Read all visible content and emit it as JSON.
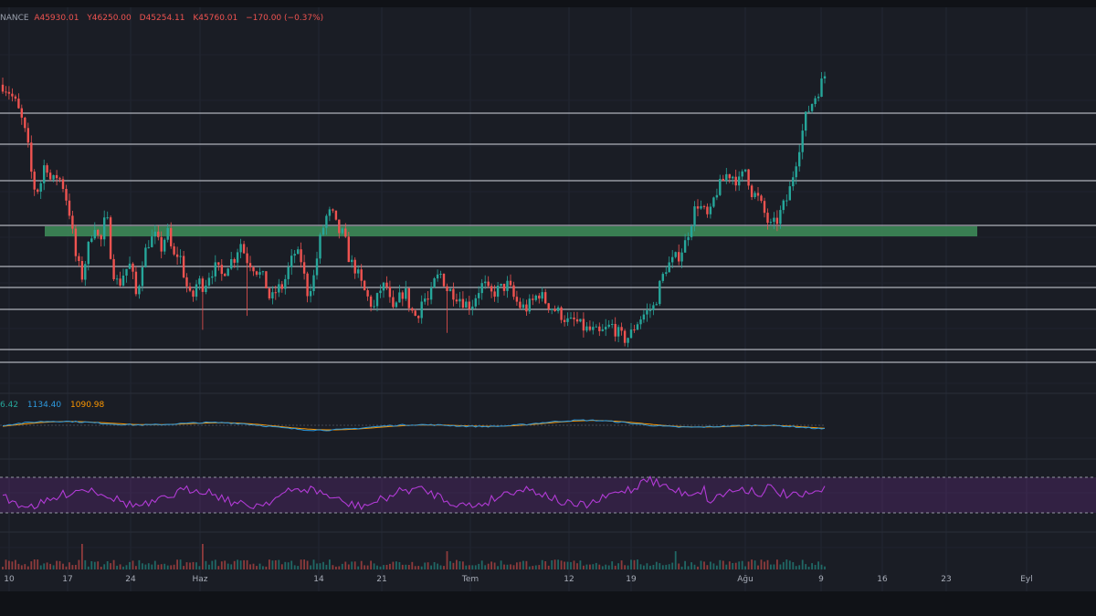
{
  "ohlc_legend": {
    "exchange": "NANCE",
    "open": "A45930.01",
    "high": "Y46250.00",
    "low": "D45254.11",
    "close": "K45760.01",
    "change": "−170.00 (−0.37%)"
  },
  "macd_legend": {
    "v1": "6.42",
    "v2": "1134.40",
    "v3": "1090.98"
  },
  "colors": {
    "background": "#1a1d25",
    "up": "#26a69a",
    "down": "#ef5350",
    "level_line": "#c9ccd3",
    "zone": "#3f8f5b",
    "rsi": "#b23bd6",
    "macd": "#2d9be0",
    "signal": "#ff9800"
  },
  "chart_data": {
    "type": "candlestick",
    "x_tick_labels": [
      "10",
      "17",
      "24",
      "Haz",
      "14",
      "21",
      "Tem",
      "12",
      "19",
      "Ağu",
      "9",
      "16",
      "23",
      "Eyl"
    ],
    "horizontal_levels_count": 9,
    "resistance_zone": "green horizontal band",
    "price_path": [
      45600,
      45200,
      44500,
      43500,
      42000,
      39000,
      38800,
      40800,
      39200,
      39800,
      39000,
      37300,
      34500,
      33200,
      35000,
      36800,
      35200,
      37400,
      33800,
      32600,
      33600,
      34000,
      31800,
      34400,
      35500,
      35800,
      35000,
      36200,
      34400,
      34800,
      32900,
      31600,
      33000,
      32600,
      33500,
      33800,
      33300,
      34100,
      34400,
      35500,
      34400,
      34000,
      33500,
      33000,
      31600,
      32400,
      32600,
      33800,
      34800,
      34300,
      32200,
      33000,
      35400,
      37000,
      37400,
      36200,
      35900,
      34200,
      33700,
      32600,
      31800,
      31200,
      32400,
      32700,
      30800,
      31700,
      32400,
      31100,
      30600,
      31900,
      31600,
      33000,
      33400,
      32400,
      32200,
      31900,
      31500,
      31400,
      32300,
      32800,
      32000,
      32300,
      32500,
      32700,
      31800,
      31300,
      31200,
      31600,
      32200,
      31700,
      31300,
      31000,
      30700,
      30200,
      30400,
      30000,
      29800,
      29700,
      29500,
      29800,
      30100,
      29600,
      29200,
      29400,
      30200,
      30700,
      31000,
      31300,
      32800,
      33900,
      34200,
      34600,
      35300,
      36700,
      38000,
      37500,
      36900,
      38600,
      39200,
      39900,
      39700,
      39300,
      40200,
      38700,
      38300,
      37400,
      36400,
      36700,
      37600,
      38400,
      40200,
      42000,
      43700,
      44500,
      45300,
      46200
    ]
  }
}
